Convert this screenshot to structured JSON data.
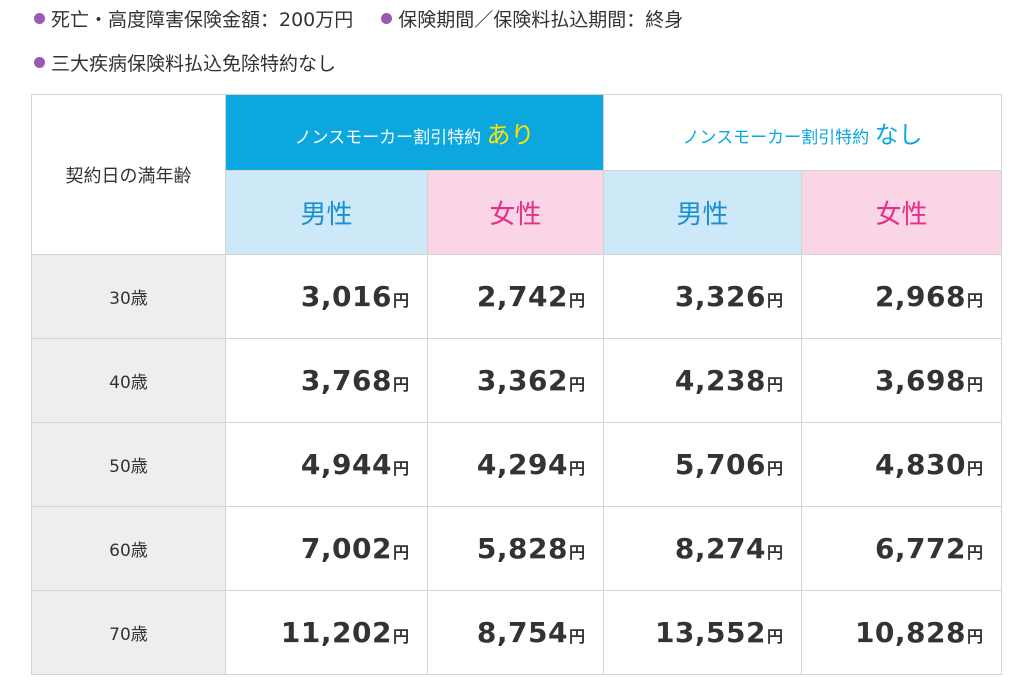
{
  "conditions": {
    "line1": [
      {
        "text": "死亡・高度障害保険金額：200万円"
      },
      {
        "text": "保険期間／保険料払込期間：終身"
      }
    ],
    "line2": [
      {
        "text": "三大疾病保険料払込免除特約なし"
      }
    ],
    "bullet_color": "#9b59b6"
  },
  "table": {
    "age_header": "契約日の満年齢",
    "plans": [
      {
        "label": "ノンスモーカー割引特約",
        "emphasis": "あり"
      },
      {
        "label": "ノンスモーカー割引特約",
        "emphasis": "なし"
      }
    ],
    "sex_labels": {
      "male": "男性",
      "female": "女性"
    },
    "unit": "円",
    "rows": [
      {
        "age": "30歳",
        "values": [
          "3,016",
          "2,742",
          "3,326",
          "2,968"
        ]
      },
      {
        "age": "40歳",
        "values": [
          "3,768",
          "3,362",
          "4,238",
          "3,698"
        ]
      },
      {
        "age": "50歳",
        "values": [
          "4,944",
          "4,294",
          "5,706",
          "4,830"
        ]
      },
      {
        "age": "60歳",
        "values": [
          "7,002",
          "5,828",
          "8,274",
          "6,772"
        ]
      },
      {
        "age": "70歳",
        "values": [
          "11,202",
          "8,754",
          "13,552",
          "10,828"
        ]
      }
    ],
    "colors": {
      "plan_with_bg": "#0ba7de",
      "plan_emphasis": "#ffe100",
      "male_bg": "#cde9f8",
      "male_text": "#1a8fd0",
      "female_bg": "#fad5e6",
      "female_text": "#e5308a",
      "age_bg": "#eeeeee"
    }
  }
}
